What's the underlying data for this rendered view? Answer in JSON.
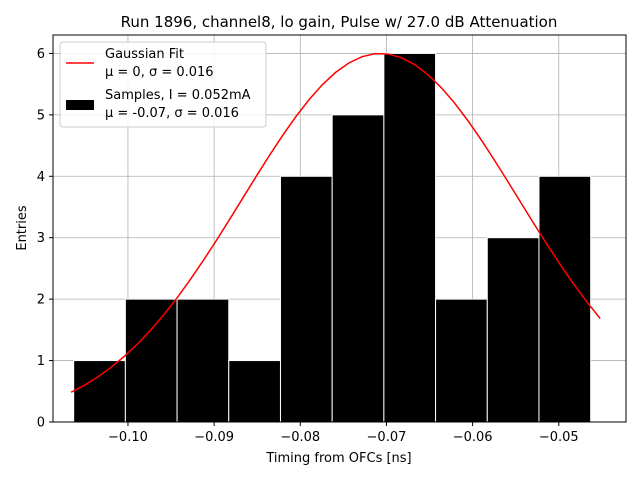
{
  "chart_data": {
    "type": "bar",
    "title": "Run 1896, channel8, lo gain, Pulse w/ 27.0 dB Attenuation",
    "xlabel": "Timing from OFCs [ns]",
    "ylabel": "Entries",
    "xlim": [
      -0.1087,
      -0.0422
    ],
    "ylim": [
      0,
      6.3
    ],
    "grid": true,
    "x_ticks": [
      -0.1,
      -0.09,
      -0.08,
      -0.07,
      -0.06,
      -0.05
    ],
    "x_tick_labels": [
      "−0.10",
      "−0.09",
      "−0.08",
      "−0.07",
      "−0.06",
      "−0.05"
    ],
    "y_ticks": [
      0,
      1,
      2,
      3,
      4,
      5,
      6
    ],
    "y_tick_labels": [
      "0",
      "1",
      "2",
      "3",
      "4",
      "5",
      "6"
    ],
    "histogram": {
      "name": "Samples, I = 0.052mA",
      "stats": "μ = -0.07, σ = 0.016",
      "color": "#000000",
      "edge_color": "#ffffff",
      "bin_edges": [
        -0.1063,
        -0.1003,
        -0.0943,
        -0.0883,
        -0.0823,
        -0.0763,
        -0.0703,
        -0.0643,
        -0.0583,
        -0.0523,
        -0.0463
      ],
      "values": [
        1,
        2,
        2,
        1,
        4,
        5,
        6,
        2,
        3,
        4
      ]
    },
    "fit": {
      "name": "Gaussian Fit",
      "stats": "μ = 0, σ = 0.016",
      "color": "#ff0000",
      "amplitude": 6.0,
      "mean": -0.0707,
      "sigma": 0.016,
      "x_range": [
        -0.1066,
        -0.0452
      ]
    },
    "legend_location": "upper-left"
  }
}
